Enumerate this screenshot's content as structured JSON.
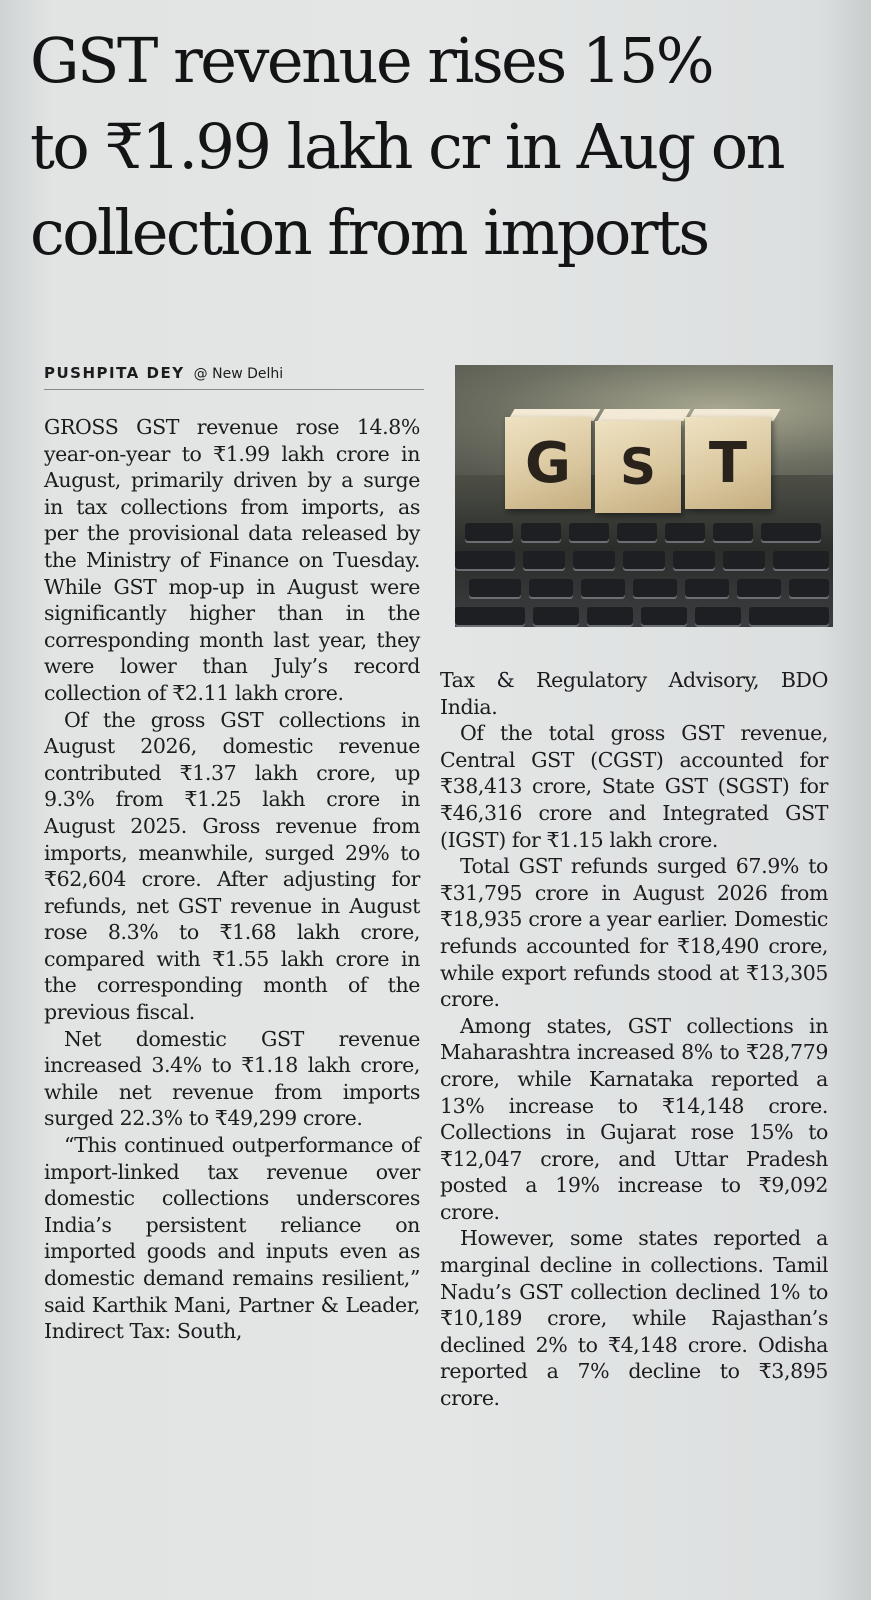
{
  "article": {
    "headline_lines": [
      "GST revenue rises 15%",
      "to ₹1.99 lakh cr in Aug on",
      "collection from imports"
    ],
    "author": "PUSHPITA DEY",
    "location": "@ New Delhi",
    "image": {
      "letters": [
        "G",
        "S",
        "T"
      ]
    },
    "paragraphs_left": [
      "GROSS GST revenue rose 14.8% year-on-year to ₹1.99 lakh crore in August, primarily driven by a surge in tax collections from imports, as per the provisional data released by the Ministry of Finance on Tuesday. While GST mop-up in August were significantly higher than in the corresponding month last year, they were lower than July’s record collection of ₹2.11 lakh crore.",
      "Of the gross GST collections in August 2026, domestic revenue contributed ₹1.37 lakh crore, up 9.3% from ₹1.25 lakh crore in August 2025. Gross revenue from imports, meanwhile, surged 29% to ₹62,604 crore. After adjusting for refunds, net GST revenue in August rose 8.3% to ₹1.68 lakh crore, compared with ₹1.55 lakh crore in the corresponding month of the previous fiscal.",
      "Net domestic GST revenue increased 3.4% to ₹1.18 lakh crore, while net revenue from imports surged 22.3% to ₹49,299 crore.",
      "“This continued outperformance of import-linked tax revenue over domestic collections underscores India’s persistent reliance on imported goods and inputs even as domestic demand remains resilient,” said Karthik Mani, Partner & Leader, Indirect Tax: South,"
    ],
    "paragraphs_right": [
      "Tax & Regulatory Advisory, BDO India.",
      "Of the total gross GST revenue, Central GST (CGST) accounted for ₹38,413 crore, State GST (SGST) for ₹46,316 crore and Integrated GST (IGST) for ₹1.15 lakh crore.",
      "Total GST refunds surged 67.9% to ₹31,795 crore in August 2026 from ₹18,935 crore a year earlier. Domestic refunds accounted for ₹18,490 crore, while export refunds stood at ₹13,305 crore.",
      "Among states, GST collections in Maharashtra increased 8% to ₹28,779 crore, while Karnataka reported a 13% increase to ₹14,148 crore. Collections in Gujarat rose 15% to ₹12,047 crore, and Uttar Pradesh posted a 19% increase to ₹9,092 crore.",
      "However, some states reported a marginal decline in collections. Tamil Nadu’s GST collection declined 1% to ₹10,189 crore, while Rajasthan’s declined 2% to ₹4,148 crore. Odisha reported a 7% decline to ₹3,895 crore."
    ]
  }
}
